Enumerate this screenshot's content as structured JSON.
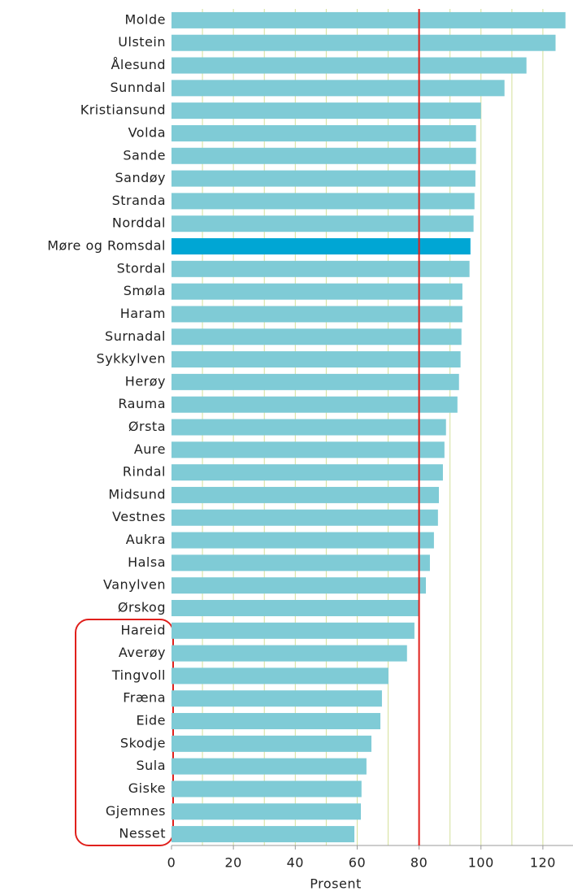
{
  "chart_data": {
    "type": "barh",
    "categories": [
      "Molde",
      "Ulstein",
      "Ålesund",
      "Sunndal",
      "Kristiansund",
      "Volda",
      "Sande",
      "Sandøy",
      "Stranda",
      "Norddal",
      "Møre og Romsdal",
      "Stordal",
      "Smøla",
      "Haram",
      "Surnadal",
      "Sykkylven",
      "Herøy",
      "Rauma",
      "Ørsta",
      "Aure",
      "Rindal",
      "Midsund",
      "Vestnes",
      "Aukra",
      "Halsa",
      "Vanylven",
      "Ørskog",
      "Hareid",
      "Averøy",
      "Tingvoll",
      "Fræna",
      "Eide",
      "Skodje",
      "Sula",
      "Giske",
      "Gjemnes",
      "Nesset"
    ],
    "values": [
      127.3,
      124.1,
      114.7,
      107.6,
      100,
      98.4,
      98.4,
      98.2,
      97.9,
      97.6,
      96.6,
      96.3,
      94.0,
      94.0,
      93.7,
      93.4,
      92.9,
      92.4,
      88.7,
      88.2,
      87.7,
      86.4,
      86.1,
      84.8,
      83.5,
      82.2,
      80.0,
      78.5,
      76.1,
      70.1,
      68.0,
      67.5,
      64.6,
      63.0,
      61.4,
      61.2,
      59.1
    ],
    "colors": [
      "#7fcbd6",
      "#7fcbd6",
      "#7fcbd6",
      "#7fcbd6",
      "#7fcbd6",
      "#7fcbd6",
      "#7fcbd6",
      "#7fcbd6",
      "#7fcbd6",
      "#7fcbd6",
      "#00a6d4",
      "#7fcbd6",
      "#7fcbd6",
      "#7fcbd6",
      "#7fcbd6",
      "#7fcbd6",
      "#7fcbd6",
      "#7fcbd6",
      "#7fcbd6",
      "#7fcbd6",
      "#7fcbd6",
      "#7fcbd6",
      "#7fcbd6",
      "#7fcbd6",
      "#7fcbd6",
      "#7fcbd6",
      "#7fcbd6",
      "#7fcbd6",
      "#7fcbd6",
      "#7fcbd6",
      "#7fcbd6",
      "#7fcbd6",
      "#7fcbd6",
      "#7fcbd6",
      "#7fcbd6",
      "#7fcbd6",
      "#7fcbd6"
    ],
    "xlabel": "Prosent",
    "xlim": [
      0,
      130
    ],
    "xticks": [
      0,
      20,
      40,
      60,
      80,
      100,
      120
    ],
    "grid_lines": [
      10,
      20,
      30,
      40,
      50,
      60,
      70,
      80,
      90,
      100,
      110,
      120
    ],
    "grid_color": "#d4e09a",
    "reference_line": 80,
    "reference_color": "#e0201c"
  }
}
